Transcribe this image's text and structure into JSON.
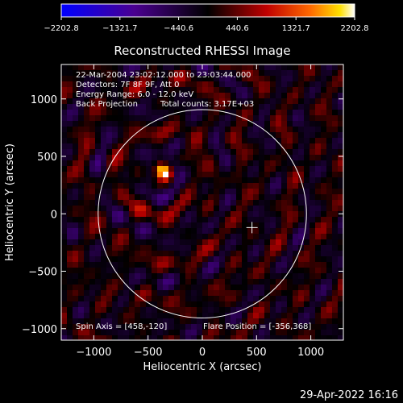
{
  "chart_data": {
    "type": "heatmap",
    "title": "Reconstructed RHESSI Image",
    "xlabel": "Heliocentric X (arcsec)",
    "ylabel": "Heliocentric Y (arcsec)",
    "xlim": [
      -1300,
      1300
    ],
    "ylim": [
      -1100,
      1300
    ],
    "xticks": [
      -1000,
      -500,
      0,
      500,
      1000
    ],
    "xtick_labels": [
      "−1000",
      "−500",
      "0",
      "500",
      "1000"
    ],
    "yticks": [
      -1000,
      -500,
      0,
      500,
      1000
    ],
    "ytick_labels": [
      "−1000",
      "−500",
      "0",
      "500",
      "1000"
    ],
    "colorbar": {
      "min": -2202.8,
      "max": 2202.8,
      "tick_values": [
        -2202.8,
        -1321.7,
        -440.6,
        440.6,
        1321.7,
        2202.8
      ],
      "tick_labels": [
        "−2202.8",
        "−1321.7",
        "−440.6",
        "440.6",
        "1321.7",
        "2202.8"
      ]
    },
    "annotations": {
      "time_range": "22-Mar-2004 23:02:12.000 to 23:03:44.000",
      "detectors": "Detectors: 7F 8F 9F, Att 0",
      "energy": "Energy Range: 6.0 - 12.0 keV",
      "method": "Back Projection",
      "counts": "Total counts: 3.17E+03",
      "spin_axis": "Spin Axis = [458,-120]",
      "flare_position": "Flare Position = [-356,368]"
    },
    "solar_disk": {
      "center": [
        0,
        0
      ],
      "radius": 960
    },
    "spin_axis_marker": [
      458,
      -120
    ],
    "source": {
      "x": -356,
      "y": 368,
      "peak": 2202.8
    }
  },
  "footer": {
    "date": "29-Apr-2022 16:16"
  }
}
